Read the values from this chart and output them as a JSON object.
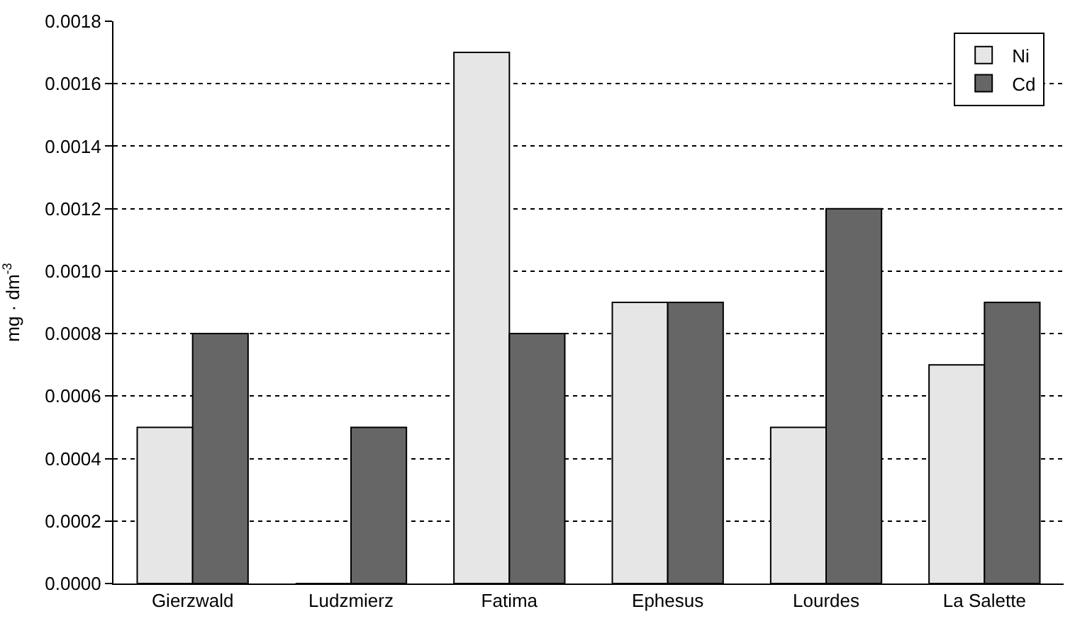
{
  "chart_data": {
    "type": "bar",
    "ylabel": "mg · dm$^{-3}$",
    "categories": [
      "Gierzwald",
      "Ludzmierz",
      "Fatima",
      "Ephesus",
      "Lourdes",
      "La Salette"
    ],
    "series": [
      {
        "name": "Ni",
        "color": "#e6e6e6",
        "values": [
          0.0005,
          0,
          0.0017,
          0.0009,
          0.0005,
          0.0007
        ]
      },
      {
        "name": "Cd",
        "color": "#666666",
        "values": [
          0.0008,
          0.0005,
          0.0008,
          0.0009,
          0.0012,
          0.0009
        ]
      }
    ],
    "ylim": [
      0,
      0.0018
    ],
    "yticks": [
      {
        "value": 0,
        "label": "0.0000"
      },
      {
        "value": 0.0002,
        "label": "0.0002"
      },
      {
        "value": 0.0004,
        "label": "0.0004"
      },
      {
        "value": 0.0006,
        "label": "0.0006"
      },
      {
        "value": 0.0008,
        "label": "0.0008"
      },
      {
        "value": 0.001,
        "label": "0.0010"
      },
      {
        "value": 0.0012,
        "label": "0.0012"
      },
      {
        "value": 0.0014,
        "label": "0.0014"
      },
      {
        "value": 0.0016,
        "label": "0.0016"
      },
      {
        "value": 0.0018,
        "label": "0.0018"
      }
    ],
    "grid": "y",
    "legend": "top right"
  }
}
